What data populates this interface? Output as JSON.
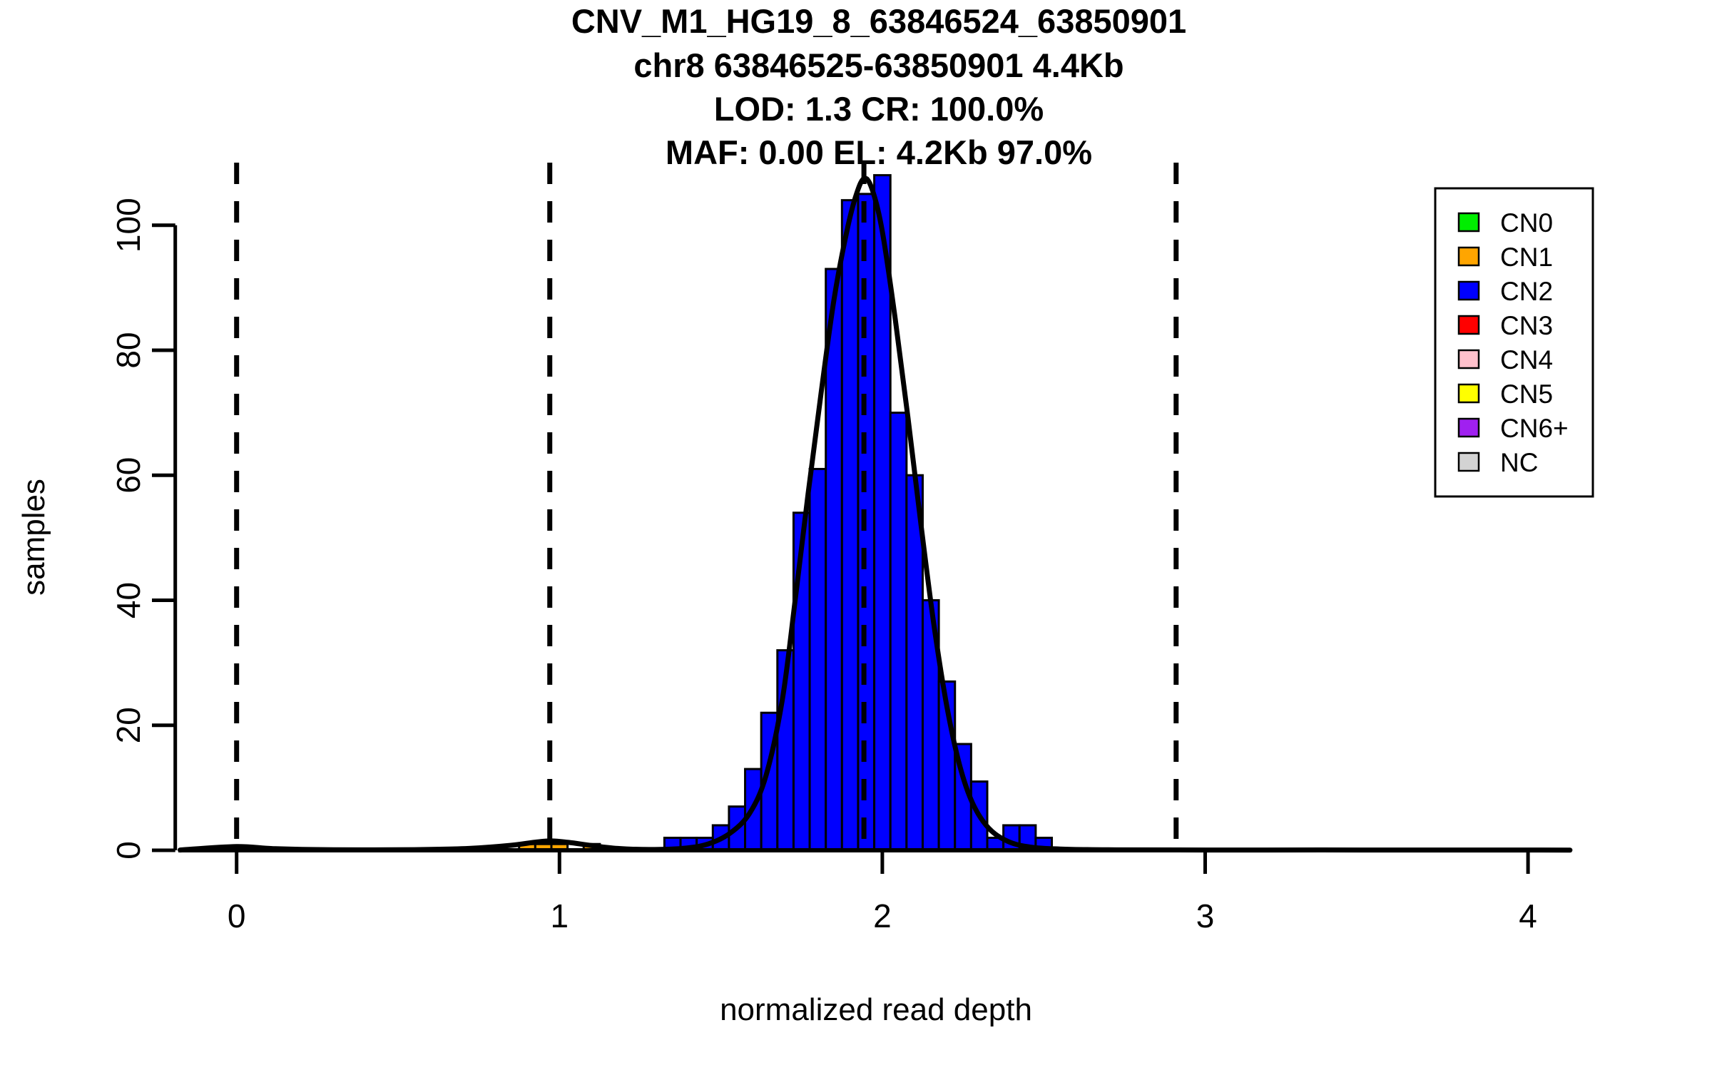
{
  "title_lines": [
    "CNV_M1_HG19_8_63846524_63850901",
    "chr8 63846525-63850901 4.4Kb",
    "LOD: 1.3 CR: 100.0%",
    "MAF: 0.00 EL: 4.2Kb 97.0%"
  ],
  "chart_data": {
    "type": "bar",
    "subtype": "histogram-with-fit-curve",
    "title": "CNV_M1_HG19_8_63846524_63850901 / chr8 63846525-63850901 4.4Kb / LOD: 1.3 CR: 100.0% / MAF: 0.00 EL: 4.2Kb 97.0%",
    "xlabel": "normalized read depth",
    "ylabel": "samples",
    "xlim": [
      -0.18,
      4.35
    ],
    "ylim": [
      0,
      110
    ],
    "x_ticks": [
      0,
      1,
      2,
      3,
      4
    ],
    "y_ticks": [
      0,
      20,
      40,
      60,
      80,
      100
    ],
    "grid": false,
    "bin_width": 0.05,
    "bars": [
      {
        "x": 0.9,
        "n": 1,
        "cn": "CN1"
      },
      {
        "x": 0.95,
        "n": 1,
        "cn": "CN1"
      },
      {
        "x": 1.0,
        "n": 1,
        "cn": "CN1"
      },
      {
        "x": 1.1,
        "n": 1,
        "cn": "CN1"
      },
      {
        "x": 1.35,
        "n": 2,
        "cn": "CN2"
      },
      {
        "x": 1.4,
        "n": 2,
        "cn": "CN2"
      },
      {
        "x": 1.45,
        "n": 2,
        "cn": "CN2"
      },
      {
        "x": 1.5,
        "n": 4,
        "cn": "CN2"
      },
      {
        "x": 1.55,
        "n": 7,
        "cn": "CN2"
      },
      {
        "x": 1.6,
        "n": 13,
        "cn": "CN2"
      },
      {
        "x": 1.65,
        "n": 22,
        "cn": "CN2"
      },
      {
        "x": 1.7,
        "n": 32,
        "cn": "CN2"
      },
      {
        "x": 1.75,
        "n": 54,
        "cn": "CN2"
      },
      {
        "x": 1.8,
        "n": 61,
        "cn": "CN2"
      },
      {
        "x": 1.85,
        "n": 93,
        "cn": "CN2"
      },
      {
        "x": 1.9,
        "n": 104,
        "cn": "CN2"
      },
      {
        "x": 1.95,
        "n": 105,
        "cn": "CN2"
      },
      {
        "x": 2.0,
        "n": 108,
        "cn": "CN2"
      },
      {
        "x": 2.05,
        "n": 70,
        "cn": "CN2"
      },
      {
        "x": 2.1,
        "n": 60,
        "cn": "CN2"
      },
      {
        "x": 2.15,
        "n": 40,
        "cn": "CN2"
      },
      {
        "x": 2.2,
        "n": 27,
        "cn": "CN2"
      },
      {
        "x": 2.25,
        "n": 17,
        "cn": "CN2"
      },
      {
        "x": 2.3,
        "n": 11,
        "cn": "CN2"
      },
      {
        "x": 2.35,
        "n": 2,
        "cn": "CN2"
      },
      {
        "x": 2.4,
        "n": 4,
        "cn": "CN2"
      },
      {
        "x": 2.45,
        "n": 4,
        "cn": "CN2"
      },
      {
        "x": 2.5,
        "n": 2,
        "cn": "CN2"
      }
    ],
    "dashed_lines_x": [
      0.0,
      0.97,
      1.943,
      2.91
    ],
    "fit_curve_points": [
      [
        -0.175,
        0.05
      ],
      [
        0.0,
        0.6
      ],
      [
        0.12,
        0.25
      ],
      [
        0.3,
        0.08
      ],
      [
        0.55,
        0.1
      ],
      [
        0.72,
        0.3
      ],
      [
        0.85,
        0.8
      ],
      [
        0.925,
        1.3
      ],
      [
        0.975,
        1.5
      ],
      [
        1.03,
        1.25
      ],
      [
        1.1,
        0.75
      ],
      [
        1.18,
        0.3
      ],
      [
        1.28,
        0.12
      ],
      [
        1.38,
        0.3
      ],
      [
        1.46,
        1.0
      ],
      [
        1.53,
        2.8
      ],
      [
        1.59,
        6
      ],
      [
        1.64,
        12
      ],
      [
        1.69,
        24
      ],
      [
        1.73,
        40
      ],
      [
        1.77,
        57
      ],
      [
        1.81,
        73
      ],
      [
        1.85,
        88
      ],
      [
        1.89,
        99
      ],
      [
        1.92,
        105
      ],
      [
        1.945,
        107.5
      ],
      [
        1.97,
        105.5
      ],
      [
        2.0,
        99
      ],
      [
        2.04,
        85
      ],
      [
        2.08,
        69
      ],
      [
        2.12,
        52
      ],
      [
        2.16,
        36
      ],
      [
        2.2,
        23
      ],
      [
        2.24,
        13.5
      ],
      [
        2.28,
        7.5
      ],
      [
        2.33,
        3.5
      ],
      [
        2.39,
        1.4
      ],
      [
        2.46,
        0.5
      ],
      [
        2.55,
        0.2
      ],
      [
        2.7,
        0.08
      ],
      [
        3.0,
        0.05
      ],
      [
        3.68,
        0.05
      ],
      [
        4.13,
        0.03
      ]
    ],
    "legend": {
      "position": "top-right",
      "entries": [
        {
          "label": "CN0",
          "color": "#00EE00"
        },
        {
          "label": "CN1",
          "color": "#FFA500"
        },
        {
          "label": "CN2",
          "color": "#0000FF"
        },
        {
          "label": "CN3",
          "color": "#FF0000"
        },
        {
          "label": "CN4",
          "color": "#FFC0CB"
        },
        {
          "label": "CN5",
          "color": "#FFFF00"
        },
        {
          "label": "CN6+",
          "color": "#A020F0"
        },
        {
          "label": "NC",
          "color": "#D3D3D3"
        }
      ]
    },
    "colors": {
      "bar_fill": "#0000FF",
      "bar_stroke": "#000000",
      "curve": "#000000",
      "axis": "#000000",
      "background": "#FFFFFF"
    }
  }
}
